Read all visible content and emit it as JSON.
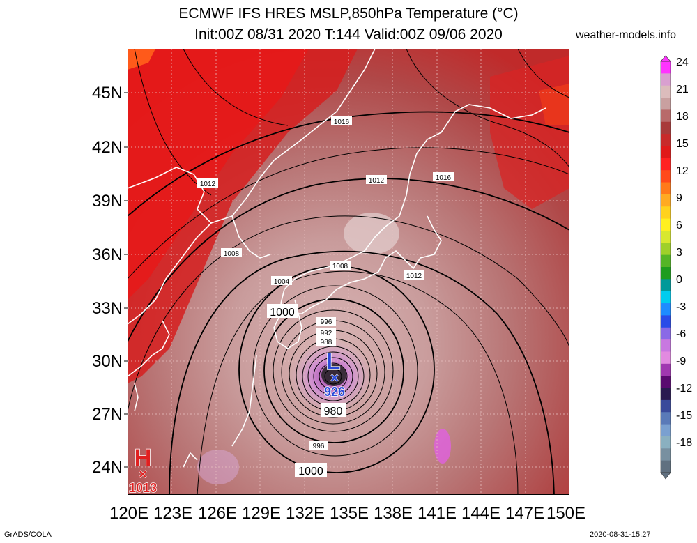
{
  "title_line1": "ECMWF IFS HRES MSLP,850hPa Temperature (°C)",
  "title_line2": "Init:00Z 08/31 2020 T:144 Valid:00Z 09/06 2020",
  "site": "weather-models.info",
  "footer_left": "GrADS/COLA",
  "footer_right": "2020-08-31-15:27",
  "lat_labels": [
    "45N",
    "42N",
    "39N",
    "36N",
    "33N",
    "30N",
    "27N",
    "24N"
  ],
  "lon_labels": [
    "120E",
    "123E",
    "126E",
    "129E",
    "132E",
    "135E",
    "138E",
    "141E",
    "144E",
    "147E",
    "150E"
  ],
  "colorbar_labels": [
    "24",
    "21",
    "18",
    "15",
    "12",
    "9",
    "6",
    "3",
    "0",
    "-3",
    "-6",
    "-9",
    "-12",
    "-15",
    "-18"
  ],
  "colorbar_colors": [
    "#ff33ff",
    "#d9a0d0",
    "#dcbcbc",
    "#c9a0a0",
    "#b86a6a",
    "#a83a3a",
    "#c82a2a",
    "#e01a1a",
    "#ff2222",
    "#ff4a1a",
    "#ff7a1a",
    "#ffaa22",
    "#ffd21e",
    "#fff020",
    "#d8e830",
    "#9fd02a",
    "#55b526",
    "#1e9c1e",
    "#009999",
    "#00ccee",
    "#1e8cff",
    "#2a4ce8",
    "#8a6ae6",
    "#c878e0",
    "#e28ae0",
    "#a038b0",
    "#5a0a70",
    "#2a1a50",
    "#3a4a9a",
    "#5a7ab8",
    "#7aa0d0",
    "#8ab0c0",
    "#7890a0",
    "#607080"
  ],
  "isobar_labels": [
    "1016",
    "1012",
    "1012",
    "1016",
    "1008",
    "1008",
    "1012",
    "1004",
    "1000",
    "996",
    "992",
    "988",
    "980",
    "996",
    "1000"
  ],
  "low_center": {
    "symbol": "L",
    "marker": "×",
    "pressure": "926"
  },
  "high_center": {
    "symbol": "H",
    "marker": "×",
    "pressure": "1013"
  },
  "colors": {
    "low": "#2a4ad8",
    "high": "#e02020",
    "coast": "#ffffff"
  }
}
